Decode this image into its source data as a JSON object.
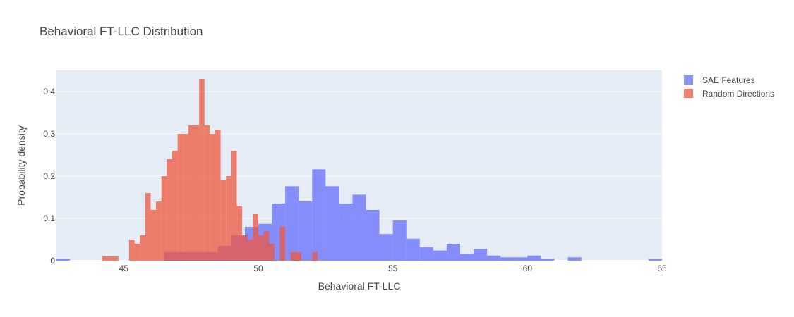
{
  "chart_data": {
    "type": "histogram",
    "title": "Behavioral FT-LLC Distribution",
    "xlabel": "Behavioral FT-LLC",
    "ylabel": "Probability density",
    "xlim": [
      42.5,
      65
    ],
    "ylim": [
      0,
      0.45
    ],
    "x_ticks": [
      45,
      50,
      55,
      60,
      65
    ],
    "x_tick_labels": [
      "45",
      "50",
      "55",
      "60",
      "65"
    ],
    "y_ticks": [
      0,
      0.1,
      0.2,
      0.3,
      0.4
    ],
    "y_tick_labels": [
      "0",
      "0.1",
      "0.2",
      "0.3",
      "0.4"
    ],
    "grid": true,
    "barmode": "overlay",
    "legend_position": "top-right",
    "series": [
      {
        "name": "SAE Features",
        "color": "#636efa",
        "opacity": 0.75,
        "bins": [
          {
            "x0": 42.5,
            "x1": 43.0,
            "y": 0.004
          },
          {
            "x0": 46.5,
            "x1": 47.0,
            "y": 0.02
          },
          {
            "x0": 47.0,
            "x1": 47.5,
            "y": 0.02
          },
          {
            "x0": 47.5,
            "x1": 48.0,
            "y": 0.02
          },
          {
            "x0": 48.0,
            "x1": 48.5,
            "y": 0.02
          },
          {
            "x0": 48.5,
            "x1": 49.0,
            "y": 0.035
          },
          {
            "x0": 49.0,
            "x1": 49.5,
            "y": 0.06
          },
          {
            "x0": 49.5,
            "x1": 50.0,
            "y": 0.08
          },
          {
            "x0": 50.0,
            "x1": 50.5,
            "y": 0.087
          },
          {
            "x0": 50.5,
            "x1": 51.0,
            "y": 0.135
          },
          {
            "x0": 51.0,
            "x1": 51.5,
            "y": 0.176
          },
          {
            "x0": 51.5,
            "x1": 52.0,
            "y": 0.14
          },
          {
            "x0": 52.0,
            "x1": 52.5,
            "y": 0.216
          },
          {
            "x0": 52.5,
            "x1": 53.0,
            "y": 0.176
          },
          {
            "x0": 53.0,
            "x1": 53.5,
            "y": 0.135
          },
          {
            "x0": 53.5,
            "x1": 54.0,
            "y": 0.156
          },
          {
            "x0": 54.0,
            "x1": 54.5,
            "y": 0.12
          },
          {
            "x0": 54.5,
            "x1": 55.0,
            "y": 0.063
          },
          {
            "x0": 55.0,
            "x1": 55.5,
            "y": 0.095
          },
          {
            "x0": 55.5,
            "x1": 56.0,
            "y": 0.052
          },
          {
            "x0": 56.0,
            "x1": 56.5,
            "y": 0.032
          },
          {
            "x0": 56.5,
            "x1": 57.0,
            "y": 0.024
          },
          {
            "x0": 57.0,
            "x1": 57.5,
            "y": 0.04
          },
          {
            "x0": 57.5,
            "x1": 58.0,
            "y": 0.016
          },
          {
            "x0": 58.0,
            "x1": 58.5,
            "y": 0.028
          },
          {
            "x0": 58.5,
            "x1": 59.0,
            "y": 0.012
          },
          {
            "x0": 59.0,
            "x1": 59.5,
            "y": 0.008
          },
          {
            "x0": 59.5,
            "x1": 60.0,
            "y": 0.008
          },
          {
            "x0": 60.0,
            "x1": 60.5,
            "y": 0.012
          },
          {
            "x0": 60.5,
            "x1": 61.0,
            "y": 0.004
          },
          {
            "x0": 61.5,
            "x1": 62.0,
            "y": 0.008
          },
          {
            "x0": 64.5,
            "x1": 65.0,
            "y": 0.004
          }
        ]
      },
      {
        "name": "Random Directions",
        "color": "#ef553b",
        "opacity": 0.75,
        "bins": [
          {
            "x0": 44.2,
            "x1": 44.8,
            "y": 0.01
          },
          {
            "x0": 45.2,
            "x1": 45.4,
            "y": 0.05
          },
          {
            "x0": 45.4,
            "x1": 45.6,
            "y": 0.04
          },
          {
            "x0": 45.6,
            "x1": 45.8,
            "y": 0.06
          },
          {
            "x0": 45.8,
            "x1": 46.0,
            "y": 0.16
          },
          {
            "x0": 46.0,
            "x1": 46.2,
            "y": 0.12
          },
          {
            "x0": 46.2,
            "x1": 46.4,
            "y": 0.14
          },
          {
            "x0": 46.4,
            "x1": 46.6,
            "y": 0.2
          },
          {
            "x0": 46.6,
            "x1": 46.8,
            "y": 0.24
          },
          {
            "x0": 46.8,
            "x1": 47.0,
            "y": 0.26
          },
          {
            "x0": 47.0,
            "x1": 47.2,
            "y": 0.3
          },
          {
            "x0": 47.2,
            "x1": 47.4,
            "y": 0.3
          },
          {
            "x0": 47.4,
            "x1": 47.6,
            "y": 0.32
          },
          {
            "x0": 47.6,
            "x1": 47.8,
            "y": 0.32
          },
          {
            "x0": 47.8,
            "x1": 48.0,
            "y": 0.43
          },
          {
            "x0": 48.0,
            "x1": 48.2,
            "y": 0.32
          },
          {
            "x0": 48.2,
            "x1": 48.4,
            "y": 0.3
          },
          {
            "x0": 48.4,
            "x1": 48.6,
            "y": 0.31
          },
          {
            "x0": 48.6,
            "x1": 48.8,
            "y": 0.19
          },
          {
            "x0": 48.8,
            "x1": 49.0,
            "y": 0.2
          },
          {
            "x0": 49.0,
            "x1": 49.2,
            "y": 0.26
          },
          {
            "x0": 49.2,
            "x1": 49.4,
            "y": 0.13
          },
          {
            "x0": 49.4,
            "x1": 49.6,
            "y": 0.06
          },
          {
            "x0": 49.6,
            "x1": 49.8,
            "y": 0.05
          },
          {
            "x0": 49.8,
            "x1": 50.0,
            "y": 0.11
          },
          {
            "x0": 50.0,
            "x1": 50.2,
            "y": 0.06
          },
          {
            "x0": 50.2,
            "x1": 50.4,
            "y": 0.07
          },
          {
            "x0": 50.4,
            "x1": 50.6,
            "y": 0.04
          },
          {
            "x0": 50.8,
            "x1": 51.0,
            "y": 0.08
          },
          {
            "x0": 51.2,
            "x1": 51.6,
            "y": 0.02
          },
          {
            "x0": 52.0,
            "x1": 52.2,
            "y": 0.02
          }
        ]
      }
    ]
  }
}
